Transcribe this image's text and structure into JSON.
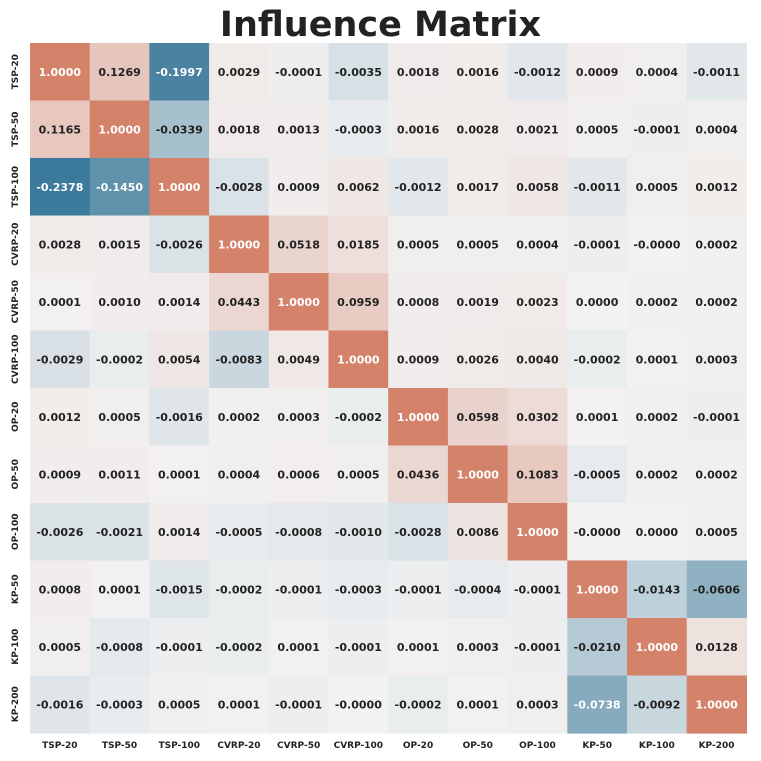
{
  "chart_data": {
    "type": "heatmap",
    "title": "Influence Matrix",
    "labels": [
      "TSP-20",
      "TSP-50",
      "TSP-100",
      "CVRP-20",
      "CVRP-50",
      "CVRP-100",
      "OP-20",
      "OP-50",
      "OP-100",
      "KP-50",
      "KP-100",
      "KP-200"
    ],
    "values": [
      [
        "1.0000",
        "0.1269",
        "-0.1997",
        "0.0029",
        "-0.0001",
        "-0.0035",
        "0.0018",
        "0.0016",
        "-0.0012",
        "0.0009",
        "0.0004",
        "-0.0011"
      ],
      [
        "0.1165",
        "1.0000",
        "-0.0339",
        "0.0018",
        "0.0013",
        "-0.0003",
        "0.0016",
        "0.0028",
        "0.0021",
        "0.0005",
        "-0.0001",
        "0.0004"
      ],
      [
        "-0.2378",
        "-0.1450",
        "1.0000",
        "-0.0028",
        "0.0009",
        "0.0062",
        "-0.0012",
        "0.0017",
        "0.0058",
        "-0.0011",
        "0.0005",
        "0.0012"
      ],
      [
        "0.0028",
        "0.0015",
        "-0.0026",
        "1.0000",
        "0.0518",
        "0.0185",
        "0.0005",
        "0.0005",
        "0.0004",
        "-0.0001",
        "-0.0000",
        "0.0002"
      ],
      [
        "0.0001",
        "0.0010",
        "0.0014",
        "0.0443",
        "1.0000",
        "0.0959",
        "0.0008",
        "0.0019",
        "0.0023",
        "0.0000",
        "0.0002",
        "0.0002"
      ],
      [
        "-0.0029",
        "-0.0002",
        "0.0054",
        "-0.0083",
        "0.0049",
        "1.0000",
        "0.0009",
        "0.0026",
        "0.0040",
        "-0.0002",
        "0.0001",
        "0.0003"
      ],
      [
        "0.0012",
        "0.0005",
        "-0.0016",
        "0.0002",
        "0.0003",
        "-0.0002",
        "1.0000",
        "0.0598",
        "0.0302",
        "0.0001",
        "0.0002",
        "-0.0001"
      ],
      [
        "0.0009",
        "0.0011",
        "0.0001",
        "0.0004",
        "0.0006",
        "0.0005",
        "0.0436",
        "1.0000",
        "0.1083",
        "-0.0005",
        "0.0002",
        "0.0002"
      ],
      [
        "-0.0026",
        "-0.0021",
        "0.0014",
        "-0.0005",
        "-0.0008",
        "-0.0010",
        "-0.0028",
        "0.0086",
        "1.0000",
        "-0.0000",
        "0.0000",
        "0.0005"
      ],
      [
        "0.0008",
        "0.0001",
        "-0.0015",
        "-0.0002",
        "-0.0001",
        "-0.0003",
        "-0.0001",
        "-0.0004",
        "-0.0001",
        "1.0000",
        "-0.0143",
        "-0.0606"
      ],
      [
        "0.0005",
        "-0.0008",
        "-0.0001",
        "-0.0002",
        "0.0001",
        "-0.0001",
        "0.0001",
        "0.0003",
        "-0.0001",
        "-0.0210",
        "1.0000",
        "0.0128"
      ],
      [
        "-0.0016",
        "-0.0003",
        "0.0005",
        "0.0001",
        "-0.0001",
        "-0.0000",
        "-0.0002",
        "0.0001",
        "0.0003",
        "-0.0738",
        "-0.0092",
        "1.0000"
      ]
    ],
    "color_scale": {
      "type": "diverging",
      "vmin": -0.2378,
      "center": 0,
      "vmax": 1.0
    },
    "colors": {
      "negative": "#3b7a9a",
      "center": "#f2f2f2",
      "positive": "#d4826a",
      "text_dark": "#222222",
      "text_light": "#ffffff"
    },
    "colorbar": false,
    "grid": false
  }
}
